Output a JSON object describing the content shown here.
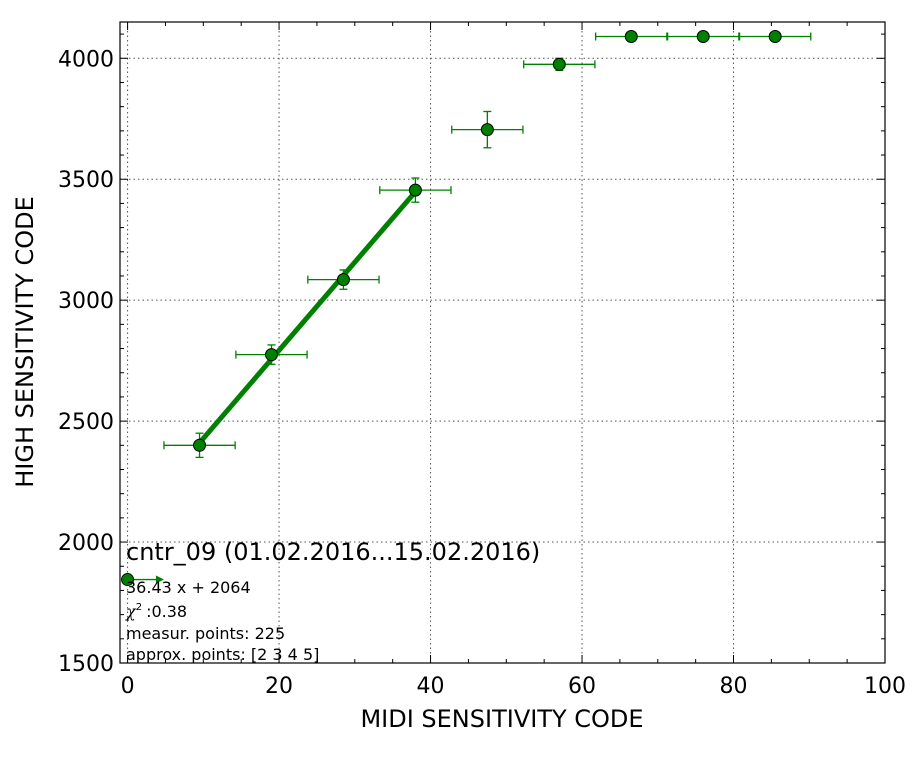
{
  "chart_data": {
    "type": "scatter",
    "xlabel": "MIDI SENSITIVITY CODE",
    "ylabel": "HIGH SENSITIVITY CODE",
    "xlim": [
      -1,
      100
    ],
    "ylim": [
      1500,
      4150
    ],
    "x_ticks": [
      0,
      20,
      40,
      60,
      80,
      100
    ],
    "y_ticks": [
      1500,
      2000,
      2500,
      3000,
      3500,
      4000
    ],
    "grid": true,
    "colors": {
      "marker": "#008000",
      "fit": "#008000",
      "errorbar": "#008000"
    },
    "points": [
      {
        "x": 9.5,
        "y": 2400,
        "xerr": 4.7,
        "yerr": 50
      },
      {
        "x": 19.0,
        "y": 2775,
        "xerr": 4.7,
        "yerr": 40
      },
      {
        "x": 28.5,
        "y": 3085,
        "xerr": 4.7,
        "yerr": 40
      },
      {
        "x": 38.0,
        "y": 3455,
        "xerr": 4.7,
        "yerr": 50
      },
      {
        "x": 47.5,
        "y": 3705,
        "xerr": 4.7,
        "yerr": 75
      },
      {
        "x": 57.0,
        "y": 3975,
        "xerr": 4.7,
        "yerr": 25
      },
      {
        "x": 66.5,
        "y": 4090,
        "xerr": 4.7,
        "yerr": 0
      },
      {
        "x": 76.0,
        "y": 4090,
        "xerr": 4.7,
        "yerr": 0
      },
      {
        "x": 85.5,
        "y": 4090,
        "xerr": 4.7,
        "yerr": 0
      }
    ],
    "fit": {
      "x_range": [
        9.5,
        38.0
      ],
      "slope": 36.43,
      "intercept": 2064
    },
    "annotation": {
      "title": "cntr_09 (01.02.2016...15.02.2016)",
      "lines": [
        "36.43 x + 2064",
        ":0.38",
        "measur. points: 225",
        "approx. points: [2 3 4 5]"
      ],
      "chi_symbol": "χ",
      "chi_superscript": "2"
    },
    "legend_marker": {
      "x": 0,
      "y": 1845,
      "arrow_to_x": 4.8
    }
  }
}
